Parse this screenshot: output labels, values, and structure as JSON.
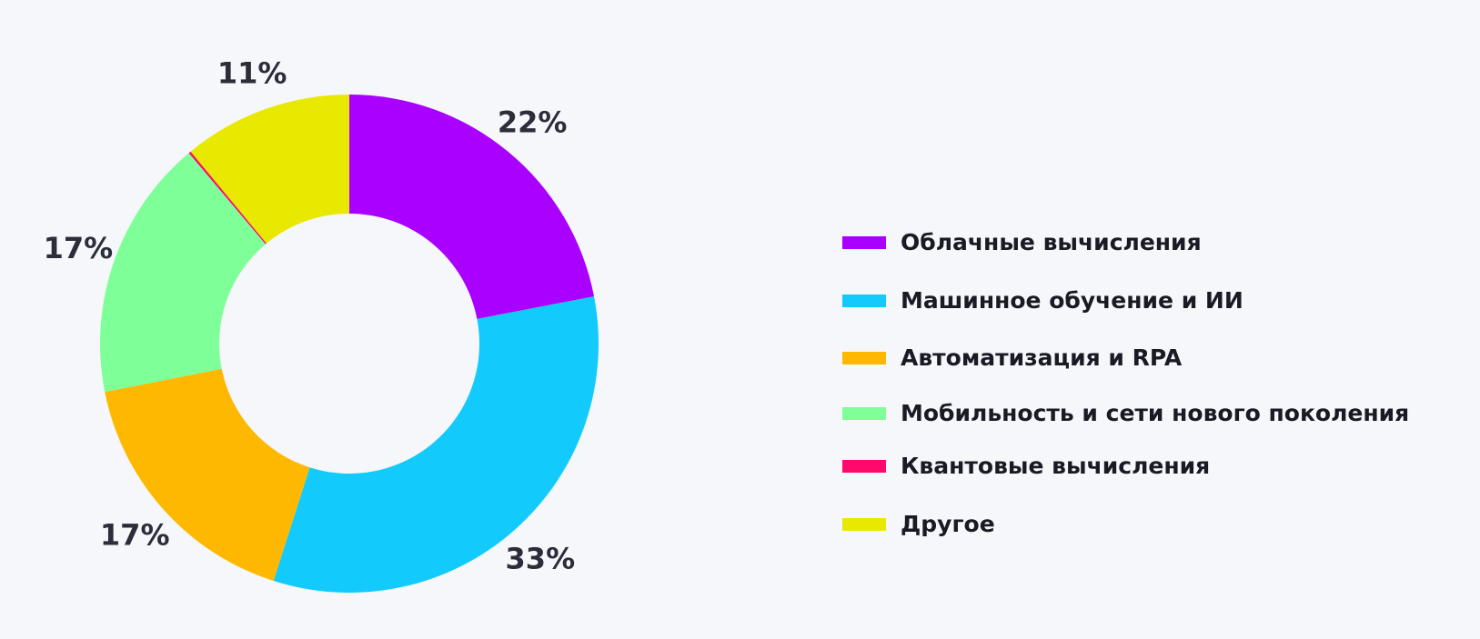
{
  "chart_data": {
    "type": "pie",
    "donut": true,
    "title": "",
    "legend_position": "right",
    "series": [
      {
        "name": "Облачные вычисления",
        "value": 22,
        "label": "22%",
        "color": "#aa00ff"
      },
      {
        "name": "Машинное обучение и ИИ",
        "value": 33,
        "label": "33%",
        "color": "#12cbfc"
      },
      {
        "name": "Автоматизация и RPA",
        "value": 17,
        "label": "17%",
        "color": "#ffb800"
      },
      {
        "name": "Мобильность и сети нового поколения",
        "value": 17,
        "label": "17%",
        "color": "#7fff98"
      },
      {
        "name": "Квантовые вычисления",
        "value": 0.15,
        "label": "",
        "color": "#ff0a6c"
      },
      {
        "name": "Другое",
        "value": 11,
        "label": "11%",
        "color": "#e8e800"
      }
    ]
  }
}
